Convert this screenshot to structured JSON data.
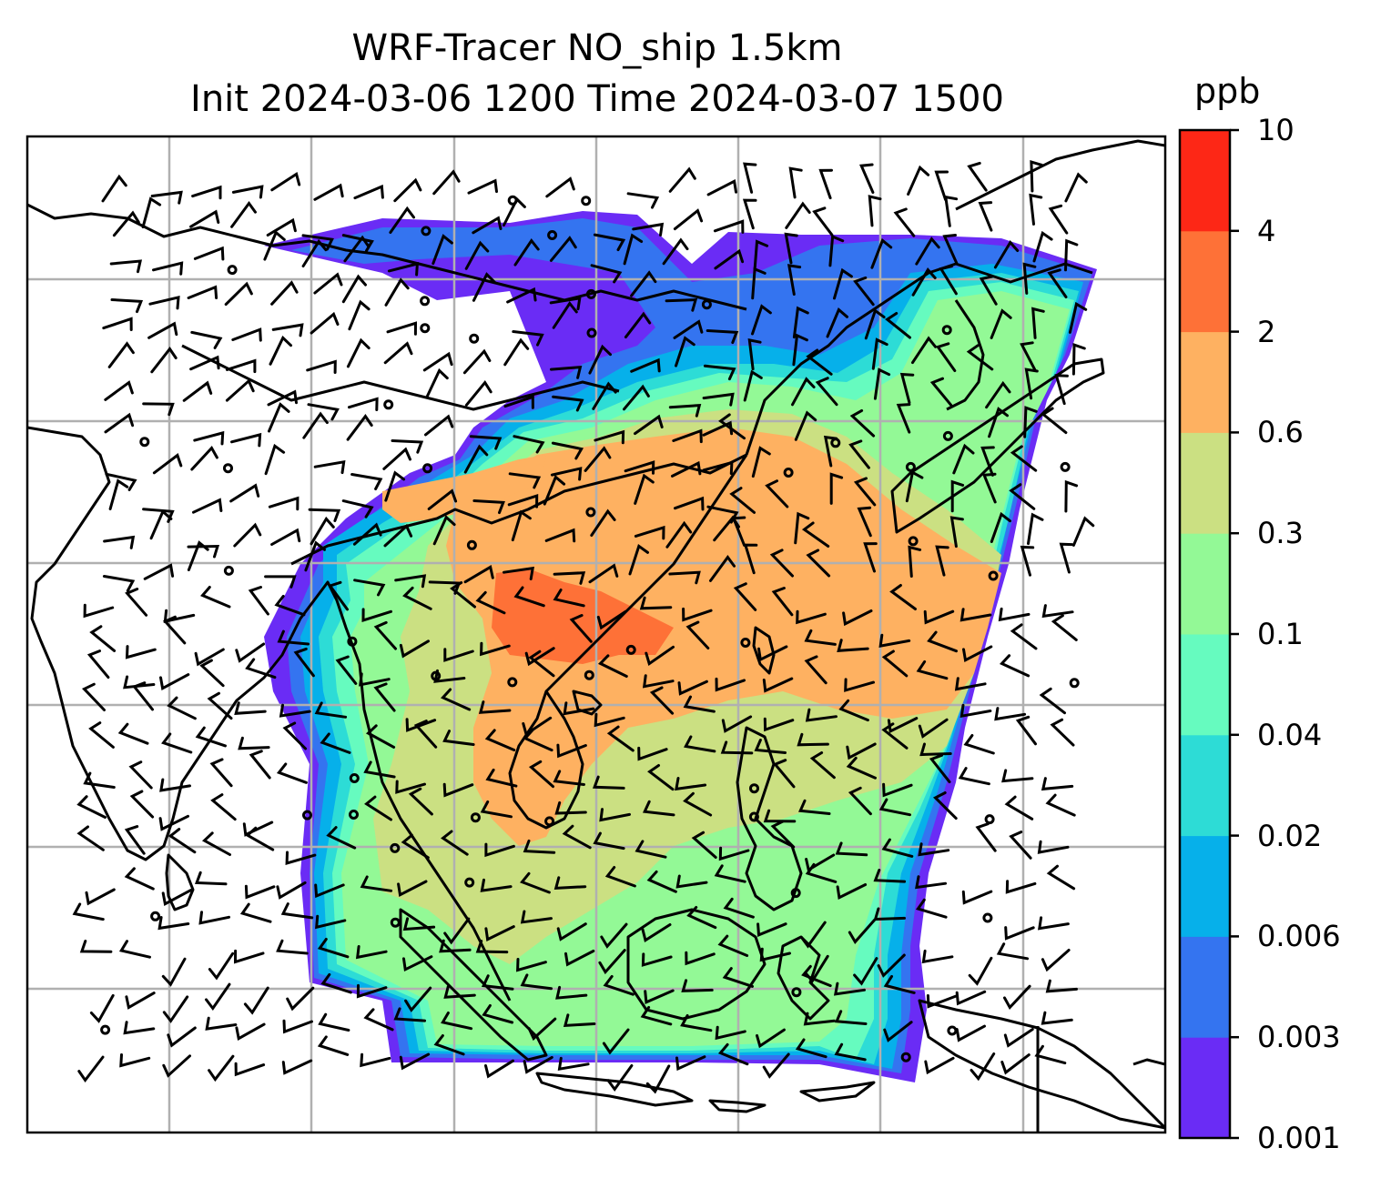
{
  "title": {
    "line1": "WRF-Tracer NO_ship 1.5km",
    "line2": "Init 2024-03-06 1200 Time 2024-03-07 1500"
  },
  "colorbar": {
    "unit": "ppb",
    "tick_labels": [
      "0.001",
      "0.003",
      "0.006",
      "0.02",
      "0.04",
      "0.1",
      "0.3",
      "0.6",
      "2",
      "4",
      "10"
    ],
    "level_colors": [
      "#6a2cf5",
      "#3474f0",
      "#06b0ea",
      "#2ddcd6",
      "#66fbbf",
      "#93f996",
      "#cbe082",
      "#feb161",
      "#fe7137",
      "#fd2716"
    ]
  },
  "map": {
    "gridline_color": "#b0b0b0",
    "coastline_color": "#000000",
    "wind_barbs": "black",
    "calm_marker": "open-circle"
  }
}
